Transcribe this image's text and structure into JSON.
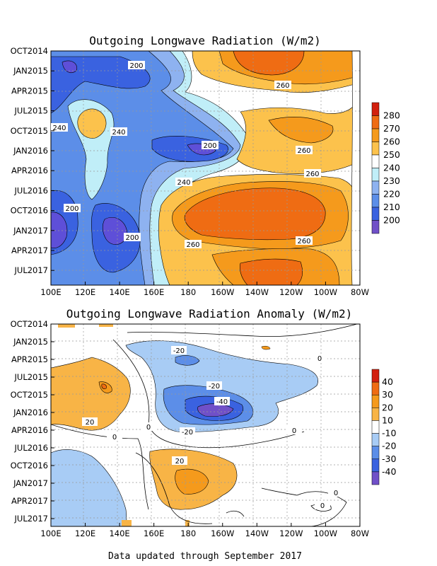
{
  "chart_data": [
    {
      "type": "heatmap",
      "title": "Outgoing Longwave Radiation (W/m2)",
      "x_tick_labels": [
        "100E",
        "120E",
        "140E",
        "160E",
        "180",
        "160W",
        "140W",
        "120W",
        "100W",
        "80W"
      ],
      "y_tick_labels": [
        "OCT2014",
        "JAN2015",
        "APR2015",
        "JUL2015",
        "OCT2015",
        "JAN2016",
        "APR2016",
        "JUL2016",
        "OCT2016",
        "JAN2017",
        "APR2017",
        "JUL2017"
      ],
      "colorbar_labels": [
        "200",
        "210",
        "220",
        "230",
        "240",
        "250",
        "260",
        "270",
        "280"
      ],
      "contour_labels": [
        "200",
        "260",
        "240",
        "240",
        "200",
        "260",
        "260",
        "240",
        "200",
        "200",
        "260",
        "260"
      ],
      "colors": {
        "lt190": "#7050c8",
        "190_200": "#5e4fd8",
        "200_210": "#3a62e0",
        "210_220": "#5c8ee8",
        "220_230": "#8eb2f0",
        "230_240": "#c0eef8",
        "240_250": "#ffffff",
        "250_260": "#fcc24c",
        "260_270": "#f59a1c",
        "270_280": "#ef6c13",
        "gt280": "#d2200e"
      },
      "regions": [
        {
          "level": "240-250",
          "fill": "#ffffff"
        },
        {
          "level": "230-240",
          "fill": "#c0eef8"
        },
        {
          "level": "220-230",
          "fill": "#8eb2f0"
        },
        {
          "level": "210-220",
          "fill": "#5c8ee8"
        },
        {
          "level": "200-210",
          "fill": "#3a62e0"
        },
        {
          "level": "<200",
          "fill": "#5e4fd8"
        },
        {
          "level": "250-260",
          "fill": "#fcc24c"
        },
        {
          "level": "260-270",
          "fill": "#f59a1c"
        },
        {
          "level": "270-280",
          "fill": "#ef6c13"
        }
      ]
    },
    {
      "type": "heatmap",
      "title": "Outgoing Longwave Radiation Anomaly (W/m2)",
      "x_tick_labels": [
        "100E",
        "120E",
        "140E",
        "160E",
        "180",
        "160W",
        "140W",
        "120W",
        "100W",
        "80W"
      ],
      "y_tick_labels": [
        "OCT2014",
        "JAN2015",
        "APR2015",
        "JUL2015",
        "OCT2015",
        "JAN2016",
        "APR2016",
        "JUL2016",
        "OCT2016",
        "JAN2017",
        "APR2017",
        "JUL2017"
      ],
      "colorbar_labels": [
        "-40",
        "-30",
        "-20",
        "-10",
        "10",
        "20",
        "30",
        "40"
      ],
      "contour_labels": [
        "-20",
        "0",
        "-20",
        "-40",
        "20",
        "0",
        "-20",
        "0",
        "0",
        "20",
        "0",
        "0"
      ],
      "colors": {
        "lt_m40": "#7050c8",
        "m40_m30": "#3a62e0",
        "m30_m20": "#5c8ee8",
        "m20_m10": "#a8ccf5",
        "m10_10": "#ffffff",
        "10_20": "#f8b446",
        "20_30": "#f59a1c",
        "30_40": "#ef6c13",
        "gt40": "#d2200e"
      }
    }
  ],
  "footer": "Data updated through September 2017"
}
